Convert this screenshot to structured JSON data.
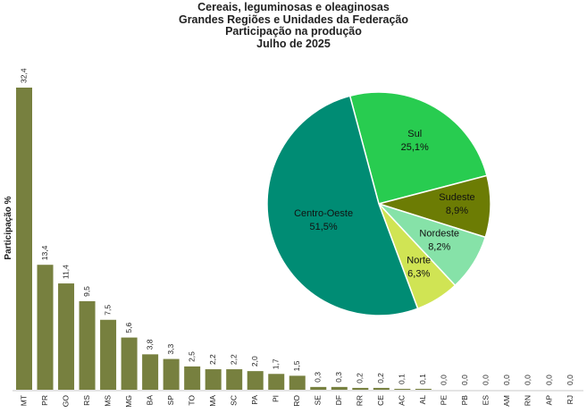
{
  "title_lines": [
    "Cereais, leguminosas e oleaginosas",
    "Grandes Regiões e Unidades da Federação",
    "Participação na produção",
    "Julho de 2025"
  ],
  "chart_data": [
    {
      "type": "bar",
      "ylabel": "Participação %",
      "ylim": [
        0,
        32.4
      ],
      "bar_color": "#77803f",
      "categories": [
        "MT",
        "PR",
        "GO",
        "RS",
        "MS",
        "MG",
        "BA",
        "SP",
        "TO",
        "MA",
        "SC",
        "PA",
        "PI",
        "RO",
        "SE",
        "DF",
        "RR",
        "CE",
        "AC",
        "AL",
        "PE",
        "PB",
        "ES",
        "AM",
        "RN",
        "AP",
        "RJ"
      ],
      "values": [
        32.4,
        13.4,
        11.4,
        9.5,
        7.5,
        5.6,
        3.8,
        3.3,
        2.5,
        2.2,
        2.2,
        2.0,
        1.7,
        1.5,
        0.3,
        0.3,
        0.2,
        0.2,
        0.1,
        0.1,
        0.0,
        0.0,
        0.0,
        0.0,
        0.0,
        0.0,
        0.0
      ],
      "value_labels": [
        "32,4",
        "13,4",
        "11,4",
        "9,5",
        "7,5",
        "5,6",
        "3,8",
        "3,3",
        "2,5",
        "2,2",
        "2,2",
        "2,0",
        "1,7",
        "1,5",
        "0,3",
        "0,3",
        "0,2",
        "0,2",
        "0,1",
        "0,1",
        "0,0",
        "0,0",
        "0,0",
        "0,0",
        "0,0",
        "0,0",
        "0,0"
      ]
    },
    {
      "type": "pie",
      "slices": [
        {
          "name": "Sul",
          "value": 25.1,
          "label": "25,1%",
          "color": "#28cc50"
        },
        {
          "name": "Sudeste",
          "value": 8.9,
          "label": "8,9%",
          "color": "#6c7c04"
        },
        {
          "name": "Nordeste",
          "value": 8.2,
          "label": "8,2%",
          "color": "#86e2a8"
        },
        {
          "name": "Norte",
          "value": 6.3,
          "label": "6,3%",
          "color": "#d0e454"
        },
        {
          "name": "Centro-Oeste",
          "value": 51.5,
          "label": "51,5%",
          "color": "#008c74"
        }
      ]
    }
  ]
}
